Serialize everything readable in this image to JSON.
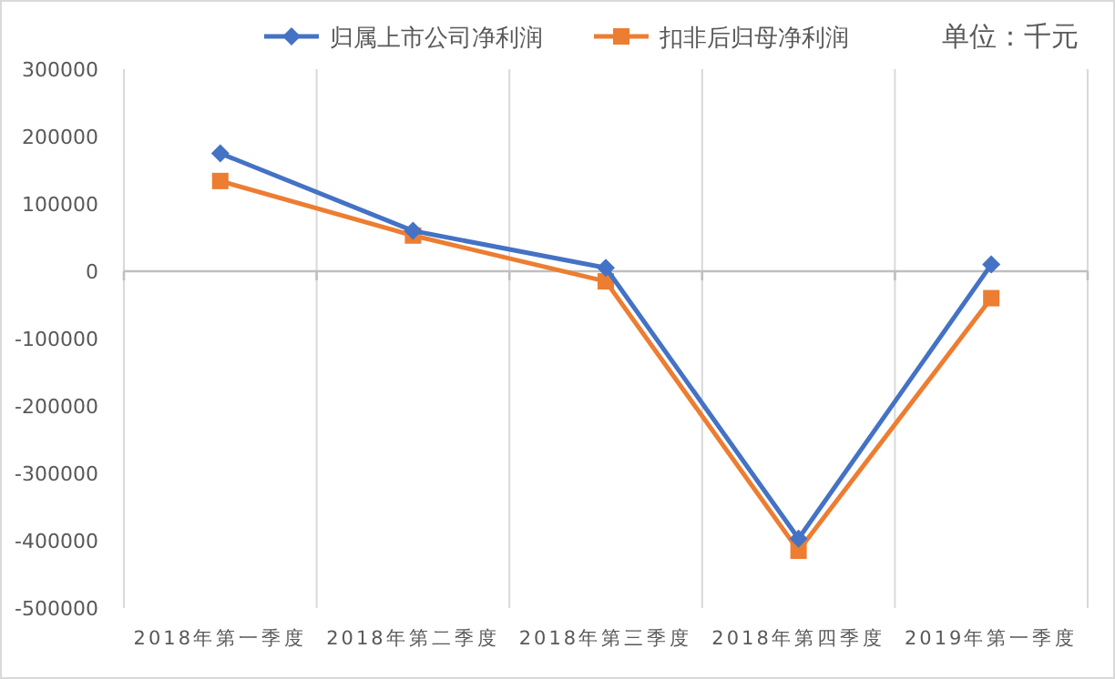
{
  "chart_data": {
    "type": "line",
    "categories": [
      "2018年第一季度",
      "2018年第二季度",
      "2018年第三季度",
      "2018年第四季度",
      "2019年第一季度"
    ],
    "series": [
      {
        "name": "归属上市公司净利润",
        "color": "#4472c4",
        "marker": "diamond",
        "values": [
          175000,
          60000,
          5000,
          -397000,
          10000
        ]
      },
      {
        "name": "扣非后归母净利润",
        "color": "#ed7d31",
        "marker": "square",
        "values": [
          134000,
          53000,
          -15000,
          -415000,
          -40000
        ]
      }
    ],
    "ylim": [
      -500000,
      300000
    ],
    "yticks": [
      -500000,
      -400000,
      -300000,
      -200000,
      -100000,
      0,
      100000,
      200000,
      300000
    ],
    "grid": "x",
    "legend": "top",
    "annotations": [
      "单位：千元"
    ]
  }
}
